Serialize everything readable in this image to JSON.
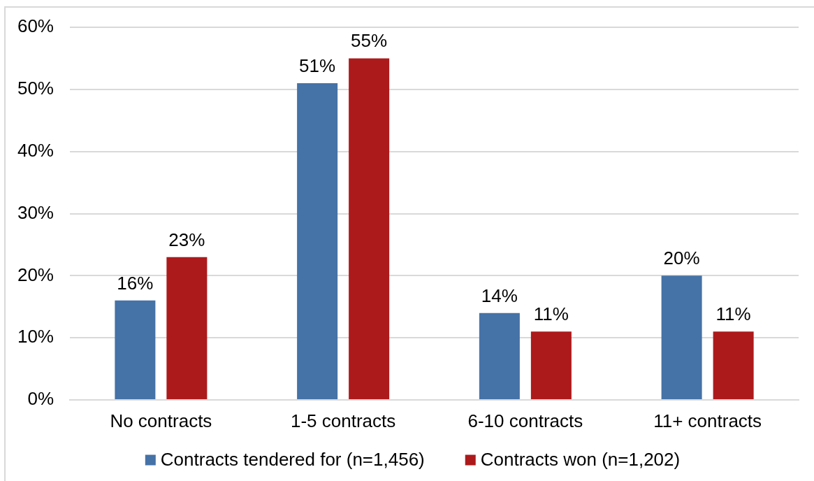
{
  "chart_data": {
    "type": "bar",
    "categories": [
      "No contracts",
      "1-5 contracts",
      "6-10 contracts",
      "11+ contracts"
    ],
    "series": [
      {
        "name": "Contracts tendered for (n=1,456)",
        "color": "#4572a7",
        "values": [
          16,
          51,
          14,
          20
        ],
        "value_labels": [
          "16%",
          "51%",
          "14%",
          "20%"
        ]
      },
      {
        "name": "Contracts won (n=1,202)",
        "color": "#ad1a1c",
        "values": [
          23,
          55,
          11,
          11
        ],
        "value_labels": [
          "23%",
          "55%",
          "11%",
          "11%"
        ]
      }
    ],
    "ylim": [
      0,
      60
    ],
    "yticks": [
      {
        "value": 0,
        "label": "0%"
      },
      {
        "value": 10,
        "label": "10%"
      },
      {
        "value": 20,
        "label": "20%"
      },
      {
        "value": 30,
        "label": "30%"
      },
      {
        "value": 40,
        "label": "40%"
      },
      {
        "value": 50,
        "label": "50%"
      },
      {
        "value": 60,
        "label": "60%"
      }
    ],
    "grid": "y",
    "legend": "bottom"
  }
}
